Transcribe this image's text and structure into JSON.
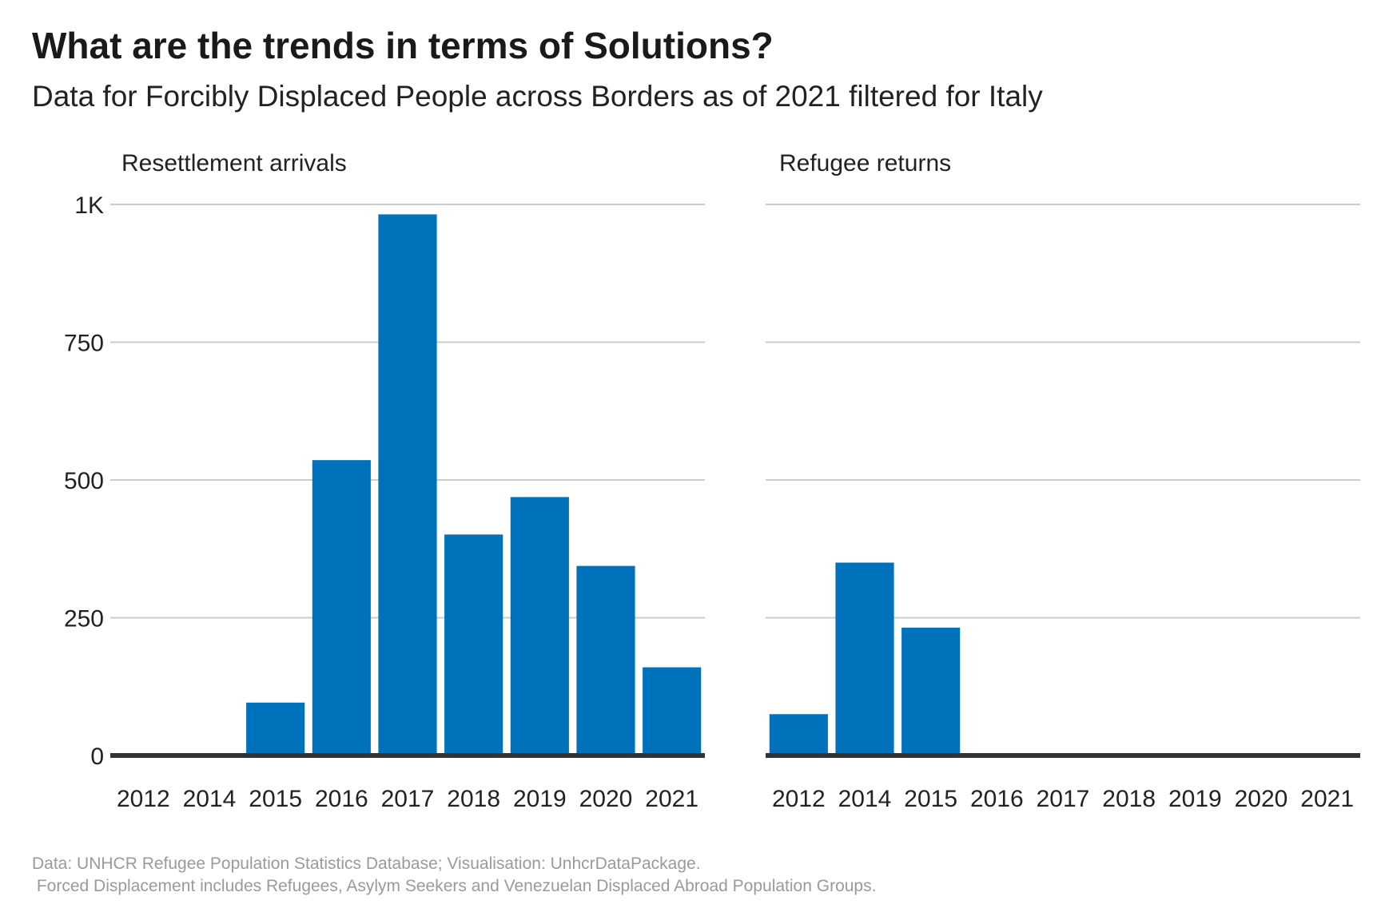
{
  "title": "What are the trends in terms of Solutions?",
  "subtitle": "Data for Forcibly Displaced People across Borders as of 2021 filtered for Italy",
  "caption": {
    "line1": "Data: UNHCR Refugee Population Statistics Database; Visualisation: UnhcrDataPackage.",
    "line2": " Forced Displacement includes Refugees, Asylym Seekers and Venezuelan Displaced Abroad Population Groups."
  },
  "colors": {
    "bar": "#0072BC",
    "grid": "#cccccc",
    "baseline": "#333333"
  },
  "chart_data": [
    {
      "type": "bar",
      "title": "Resettlement arrivals",
      "categories": [
        "2012",
        "2014",
        "2015",
        "2016",
        "2017",
        "2018",
        "2019",
        "2020",
        "2021"
      ],
      "values": [
        0,
        0,
        96,
        536,
        982,
        401,
        469,
        344,
        160
      ],
      "ylim": [
        0,
        1000
      ],
      "yticks": [
        0,
        250,
        500,
        750,
        1000
      ],
      "ytick_labels": [
        "0",
        "250",
        "500",
        "750",
        "1K"
      ],
      "grid": true
    },
    {
      "type": "bar",
      "title": "Refugee returns",
      "categories": [
        "2012",
        "2014",
        "2015",
        "2016",
        "2017",
        "2018",
        "2019",
        "2020",
        "2021"
      ],
      "values": [
        75,
        350,
        232,
        0,
        0,
        0,
        0,
        0,
        0
      ],
      "ylim": [
        0,
        1000
      ],
      "yticks": [
        0,
        250,
        500,
        750,
        1000
      ],
      "ytick_labels": [
        "0",
        "250",
        "500",
        "750",
        "1K"
      ],
      "grid": true
    }
  ]
}
